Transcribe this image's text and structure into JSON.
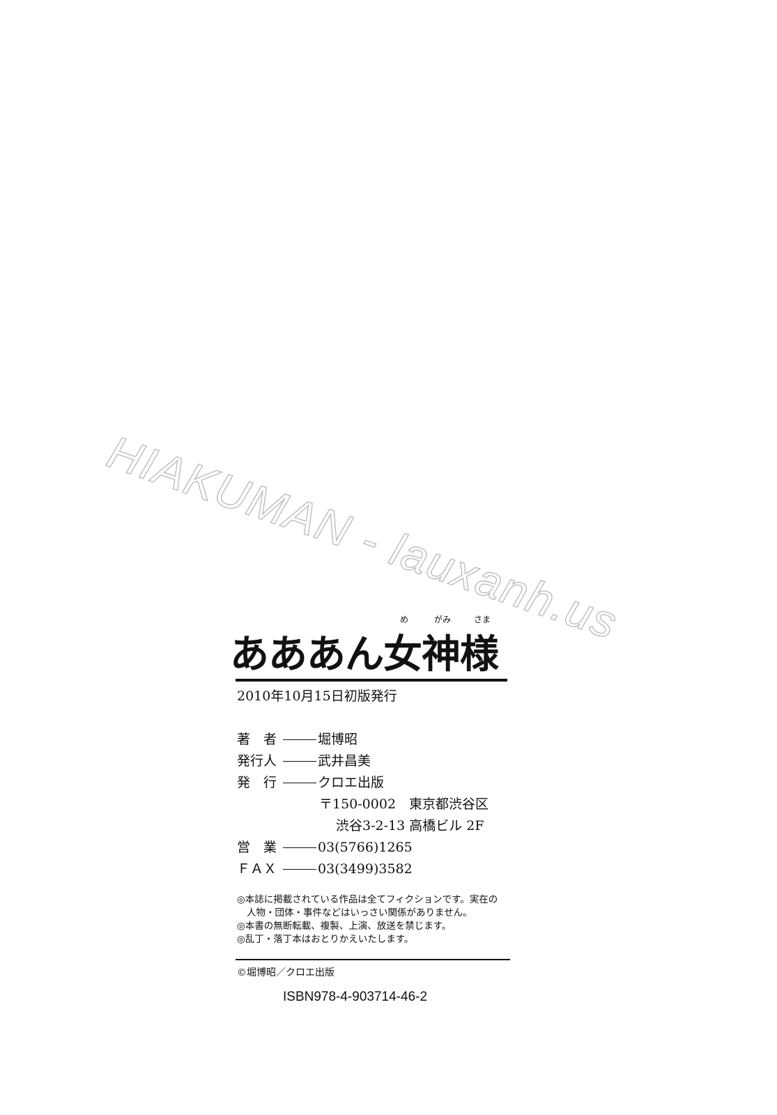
{
  "watermark": "HIAKUMAN - lauxanh.us",
  "title": {
    "text": "あああん女神様",
    "ruby": [
      "め",
      "がみ",
      "さま"
    ]
  },
  "edition": "2010年10月15日初版発行",
  "credits": [
    {
      "label": "著　者",
      "value": "堀博昭"
    },
    {
      "label": "発行人",
      "value": "武井昌美"
    },
    {
      "label": "発　行",
      "value": "クロエ出版"
    }
  ],
  "address": {
    "line1": "〒150-0002　東京都渋谷区",
    "line2": "渋谷3-2-13 高橋ビル 2F"
  },
  "phone": {
    "label": "営　業",
    "value": "03(5766)1265"
  },
  "fax": {
    "label": "ＦＡＸ",
    "value": "03(3499)3582"
  },
  "notes": {
    "note1_a": "◎本誌に掲載されている作品は全てフィクションです。実在の",
    "note1_b": "人物・団体・事件などはいっさい関係がありません。",
    "note2": "◎本書の無断転載、複製、上演、放送を禁じます。",
    "note3": "◎乱丁・落丁本はおとりかえいたします。"
  },
  "copyright": "©堀博昭／クロエ出版",
  "isbn": "ISBN978-4-903714-46-2"
}
